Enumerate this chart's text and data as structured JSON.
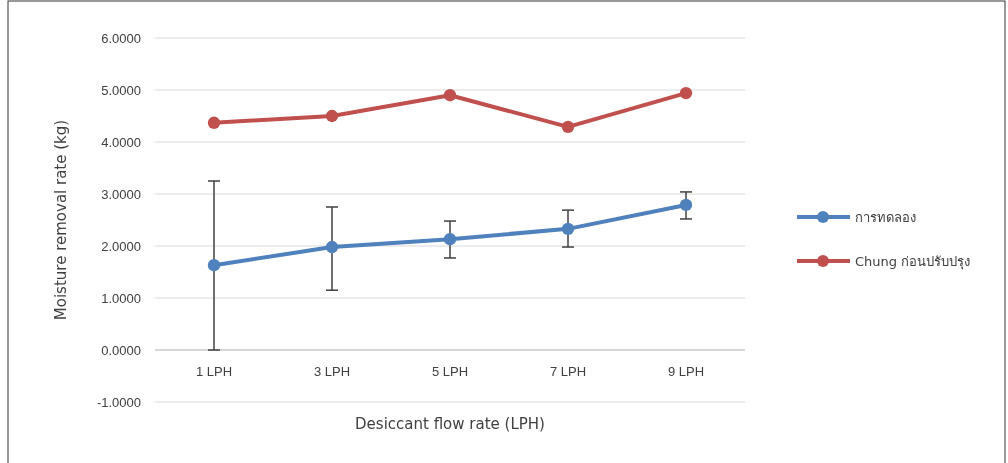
{
  "chart_data": {
    "type": "line",
    "xlabel": "Desiccant flow rate (LPH)",
    "ylabel": "Moisture removal rate (kg)",
    "categories": [
      "1 LPH",
      "3 LPH",
      "5 LPH",
      "7 LPH",
      "9 LPH"
    ],
    "ylim": [
      -1,
      6
    ],
    "yticks": [
      {
        "value": -1,
        "label": "-1.0000"
      },
      {
        "value": 0,
        "label": "0.0000"
      },
      {
        "value": 1,
        "label": "1.0000"
      },
      {
        "value": 2,
        "label": "2.0000"
      },
      {
        "value": 3,
        "label": "3.0000"
      },
      {
        "value": 4,
        "label": "4.0000"
      },
      {
        "value": 5,
        "label": "5.0000"
      },
      {
        "value": 6,
        "label": "6.0000"
      }
    ],
    "grid": "y",
    "legend": "right",
    "marker": "circle",
    "line_style": "solid",
    "series": [
      {
        "name": "การทดลอง",
        "color": "#4f81bd",
        "values": [
          1.63,
          1.98,
          2.13,
          2.33,
          2.79
        ],
        "errors": [
          [
            0.0,
            3.25
          ],
          [
            1.15,
            2.75
          ],
          [
            1.77,
            2.48
          ],
          [
            1.98,
            2.69
          ],
          [
            2.52,
            3.04
          ]
        ]
      },
      {
        "name": "Chung ก่อนปรับปรุง",
        "color": "#c0504d",
        "values": [
          4.37,
          4.5,
          4.9,
          4.29,
          4.94
        ]
      }
    ]
  }
}
